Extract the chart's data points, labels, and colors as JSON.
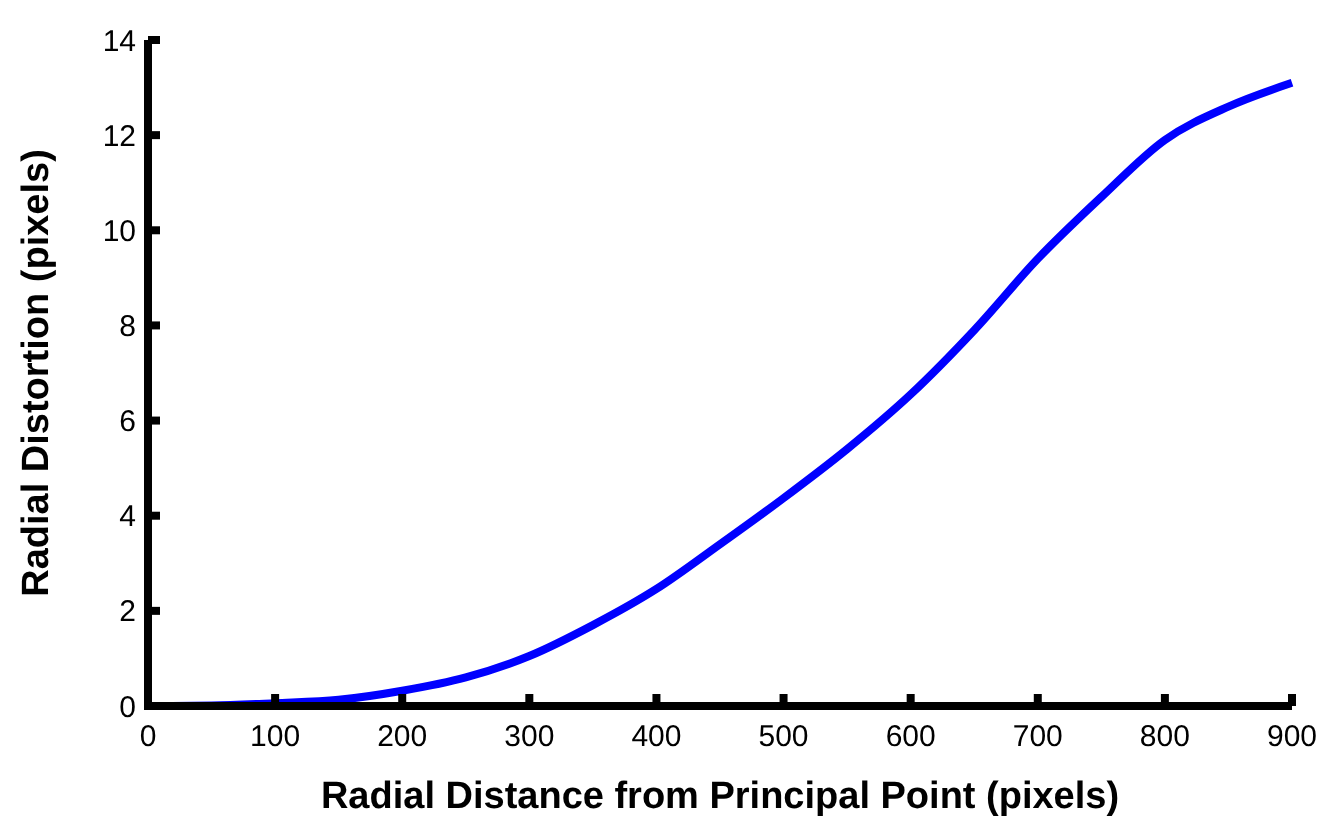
{
  "chart_data": {
    "type": "line",
    "xlabel": "Radial Distance from Principal Point (pixels)",
    "ylabel": "Radial Distortion (pixels)",
    "x": [
      0,
      50,
      100,
      150,
      200,
      250,
      300,
      350,
      400,
      450,
      500,
      550,
      600,
      650,
      700,
      750,
      800,
      850,
      900
    ],
    "series": [
      {
        "color": "#0000ff",
        "values": [
          0,
          0.01,
          0.06,
          0.13,
          0.32,
          0.6,
          1.05,
          1.7,
          2.46,
          3.4,
          4.37,
          5.4,
          6.55,
          7.9,
          9.4,
          10.7,
          11.9,
          12.6,
          13.1
        ]
      }
    ],
    "xlim": [
      0,
      900
    ],
    "xticks": [
      0,
      100,
      200,
      300,
      400,
      500,
      600,
      700,
      800,
      900
    ],
    "ylim": [
      0,
      14
    ],
    "yticks": [
      0,
      2,
      4,
      6,
      8,
      10,
      12,
      14
    ],
    "grid": false
  }
}
